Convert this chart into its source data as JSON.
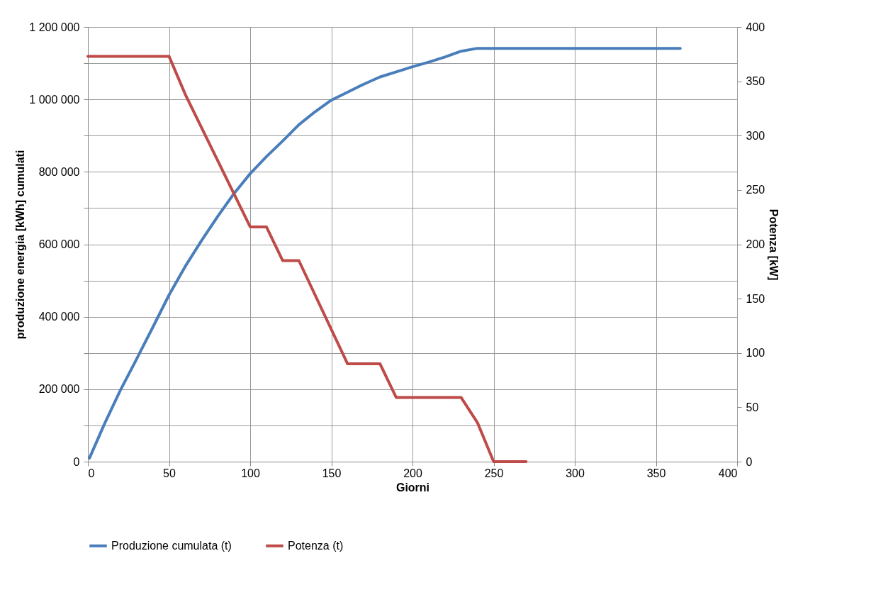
{
  "chart_data": {
    "type": "line",
    "xlabel": "Giorni",
    "ylabel": "produzione energia  [kWh] cumulati",
    "y2label": "Potenza [kW]",
    "xlim": [
      0,
      400
    ],
    "xticks": [
      0,
      50,
      100,
      150,
      200,
      250,
      300,
      350,
      400
    ],
    "ylim": [
      0,
      1200000
    ],
    "yticks": [
      {
        "value": 0,
        "label": "0"
      },
      {
        "value": 100000,
        "label": null
      },
      {
        "value": 200000,
        "label": "200 000"
      },
      {
        "value": 300000,
        "label": null
      },
      {
        "value": 400000,
        "label": "400 000"
      },
      {
        "value": 500000,
        "label": null
      },
      {
        "value": 600000,
        "label": "600 000"
      },
      {
        "value": 700000,
        "label": null
      },
      {
        "value": 800000,
        "label": "800 000"
      },
      {
        "value": 900000,
        "label": null
      },
      {
        "value": 1000000,
        "label": "1 000 000"
      },
      {
        "value": 1100000,
        "label": null
      },
      {
        "value": 1200000,
        "label": "1 200 000"
      }
    ],
    "y2lim": [
      0,
      400
    ],
    "y2ticks": [
      0,
      50,
      100,
      150,
      200,
      250,
      300,
      350,
      400
    ],
    "grid": true,
    "legend": "bottom",
    "marker": "none",
    "line_style": "solid",
    "series": [
      {
        "name": "Produzione cumulata (t)",
        "color": "#4a7ebb",
        "x": [
          1,
          10,
          20,
          30,
          40,
          50,
          60,
          70,
          80,
          90,
          100,
          110,
          120,
          130,
          140,
          150,
          160,
          170,
          180,
          190,
          200,
          210,
          220,
          230,
          240,
          365
        ],
        "values": [
          10000,
          102000,
          197000,
          283000,
          371000,
          460000,
          539000,
          610000,
          677000,
          740000,
          795000,
          842000,
          885000,
          930000,
          966000,
          998000,
          1020000,
          1042000,
          1062000,
          1076000,
          1090000,
          1103000,
          1117000,
          1133000,
          1141000,
          1141000
        ]
      },
      {
        "name": "Potenza (t)",
        "color": "#be4b48",
        "axis": "y2",
        "x": [
          0,
          50,
          60,
          100,
          110,
          120,
          130,
          160,
          180,
          190,
          230,
          240,
          250,
          270
        ],
        "values": [
          373,
          373,
          338,
          216,
          216,
          185,
          185,
          90,
          90,
          59,
          59,
          36,
          0,
          0
        ]
      }
    ]
  }
}
